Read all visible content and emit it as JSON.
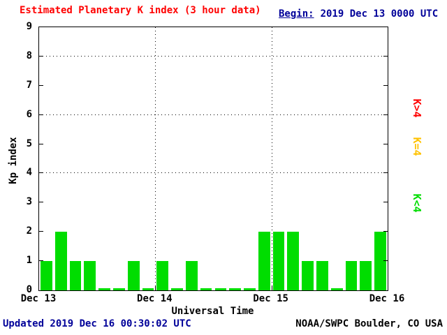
{
  "header": {
    "title": "Estimated Planetary K index (3 hour data)",
    "begin_label": "Begin:",
    "begin_value": "2019 Dec 13 0000 UTC"
  },
  "footer": {
    "updated": "Updated 2019 Dec 16 00:30:02 UTC",
    "source": "NOAA/SWPC Boulder, CO USA"
  },
  "legend": {
    "items": [
      {
        "id": "k-gt-4",
        "label": "K>4",
        "color": "#ff0000"
      },
      {
        "id": "k-eq-4",
        "label": "K=4",
        "color": "#ffc200"
      },
      {
        "id": "k-lt-4",
        "label": "K<4",
        "color": "#00dd00"
      }
    ]
  },
  "colors": {
    "title": "#ff0000",
    "annotation": "#000099",
    "axis": "#000000",
    "bar_low": "#00dd00",
    "bar_mid": "#ffc200",
    "bar_high": "#ff0000",
    "background": "#ffffff"
  },
  "chart_data": {
    "type": "bar",
    "title": "Estimated Planetary K index (3 hour data)",
    "xlabel": "Universal Time",
    "ylabel": "Kp index",
    "begin": "2019 Dec 13 0000 UTC",
    "interval_hours": 3,
    "ylim": [
      0,
      9
    ],
    "yticks": [
      0,
      1,
      2,
      3,
      4,
      5,
      6,
      7,
      8,
      9
    ],
    "grid_y": [
      4,
      6,
      8
    ],
    "x_day_labels": [
      "Dec 13",
      "Dec 14",
      "Dec 15",
      "Dec 16"
    ],
    "values": [
      1,
      2,
      1,
      1,
      0,
      0,
      1,
      0,
      1,
      0,
      1,
      0,
      0,
      0,
      0,
      2,
      2,
      2,
      1,
      1,
      0,
      1,
      1,
      2
    ],
    "color_rule": {
      "lt4": "#00dd00",
      "eq4": "#ffc200",
      "gt4": "#ff0000"
    },
    "legend_position": "right",
    "grid_style": "dotted"
  }
}
